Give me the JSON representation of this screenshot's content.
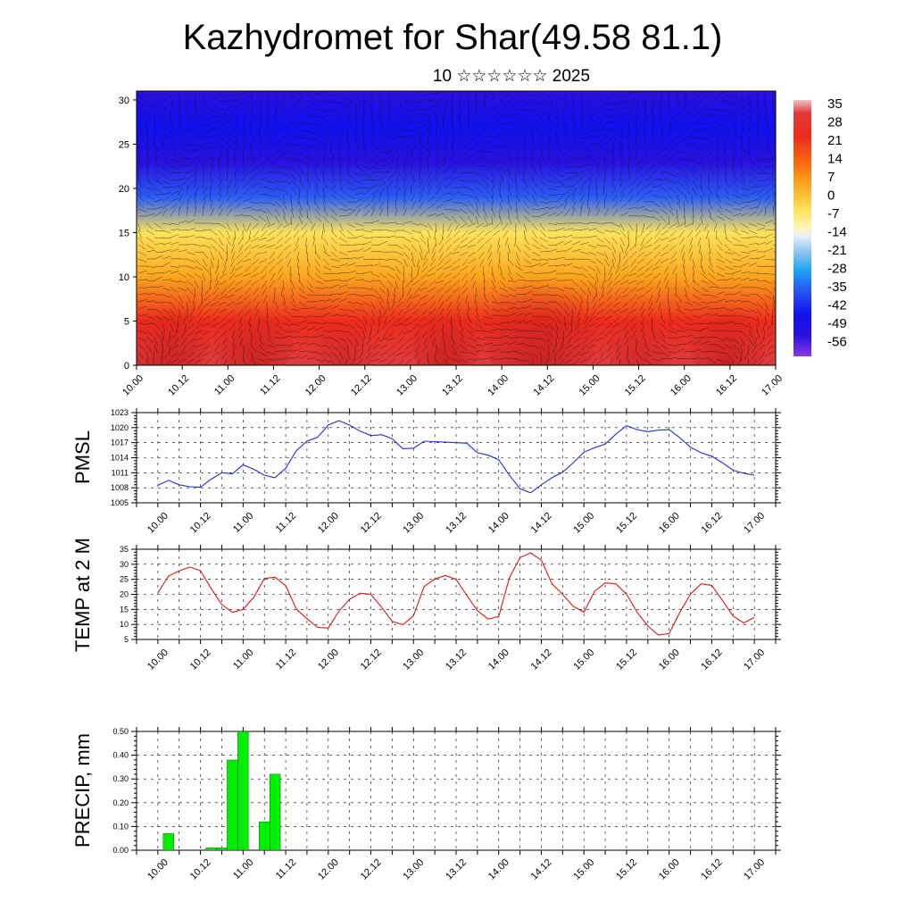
{
  "header": {
    "title": "Kazhydromet for Shar(49.58 81.1)",
    "date_line": "10 ☆☆☆☆☆☆ 2025"
  },
  "chart_data": [
    {
      "id": "temp-cross-section",
      "type": "heatmap",
      "title": "",
      "xlabel": "",
      "ylabel": "",
      "x_tick_labels": [
        "10.00",
        "10.12",
        "11.00",
        "11.12",
        "12.00",
        "12.12",
        "13.00",
        "13.12",
        "14.00",
        "14.12",
        "15.00",
        "15.12",
        "16.00",
        "16.12",
        "17.00"
      ],
      "y_ticks": [
        0,
        5,
        10,
        15,
        20,
        25,
        30
      ],
      "ylim": [
        0,
        31
      ],
      "layers": [
        {
          "height_km": 0.5,
          "temp_c": 28
        },
        {
          "height_km": 5,
          "temp_c": 18
        },
        {
          "height_km": 10,
          "temp_c": 5
        },
        {
          "height_km": 15,
          "temp_c": -10
        },
        {
          "height_km": 19,
          "temp_c": -35
        },
        {
          "height_km": 23,
          "temp_c": -58
        },
        {
          "height_km": 27,
          "temp_c": -52
        },
        {
          "height_km": 31,
          "temp_c": -56
        }
      ],
      "wind_barbs": true,
      "colorbar": {
        "labels": [
          "35",
          "28",
          "21",
          "14",
          "7",
          "0",
          "-7",
          "-14",
          "-21",
          "-28",
          "-35",
          "-42",
          "-49",
          "-56"
        ],
        "range": [
          -60,
          38
        ],
        "placement": "right"
      }
    },
    {
      "id": "pmsl",
      "type": "line",
      "ylabel": "PMSL",
      "color": "#1f2ee0",
      "y_tick_labels": [
        "1005",
        "1008",
        "1011",
        "1014",
        "1017",
        "1020",
        "1023"
      ],
      "ylim": [
        1005,
        1023
      ],
      "x_tick_labels": [
        "10.00",
        "10.12",
        "11.00",
        "11.12",
        "12.00",
        "12.12",
        "13.00",
        "13.12",
        "14.00",
        "14.12",
        "15.00",
        "15.12",
        "16.00",
        "16.12",
        "17.00"
      ],
      "xlim": [
        -0.25,
        7.25
      ],
      "x": [
        0,
        0.125,
        0.25,
        0.375,
        0.5,
        0.625,
        0.75,
        0.875,
        1,
        1.125,
        1.25,
        1.375,
        1.5,
        1.625,
        1.75,
        1.875,
        2,
        2.125,
        2.25,
        2.375,
        2.5,
        2.625,
        2.75,
        2.875,
        3,
        3.125,
        3.25,
        3.375,
        3.5,
        3.625,
        3.75,
        3.875,
        4,
        4.125,
        4.25,
        4.375,
        4.5,
        4.625,
        4.75,
        4.875,
        5,
        5.125,
        5.25,
        5.375,
        5.5,
        5.625,
        5.75,
        5.875,
        6,
        6.125,
        6.25,
        6.375,
        6.5,
        6.625,
        6.75,
        6.875,
        7
      ],
      "values": [
        1008.5,
        1009.5,
        1008.6,
        1008.2,
        1008.1,
        1009.7,
        1011.0,
        1010.8,
        1012.6,
        1011.7,
        1010.5,
        1010.0,
        1011.9,
        1015.4,
        1017.3,
        1018.1,
        1020.5,
        1021.4,
        1020.5,
        1019.3,
        1018.4,
        1018.6,
        1017.8,
        1015.8,
        1015.9,
        1017.3,
        1017.2,
        1017.1,
        1017.0,
        1016.9,
        1015.0,
        1014.5,
        1013.6,
        1010.5,
        1007.8,
        1007.0,
        1008.6,
        1010.0,
        1011.1,
        1013.0,
        1015.1,
        1016.0,
        1016.7,
        1018.7,
        1020.4,
        1019.6,
        1019.2,
        1019.5,
        1019.6,
        1018.0,
        1016.1,
        1015.0,
        1014.3,
        1013.0,
        1011.5,
        1010.9,
        1010.5
      ],
      "grid": true
    },
    {
      "id": "temp-2m",
      "type": "line",
      "ylabel": "TEMP at 2 M",
      "color": "#e01515",
      "y_tick_labels": [
        "5",
        "10",
        "15",
        "20",
        "25",
        "30",
        "35"
      ],
      "ylim": [
        5,
        35
      ],
      "x_tick_labels": [
        "10.00",
        "10.12",
        "11.00",
        "11.12",
        "12.00",
        "12.12",
        "13.00",
        "13.12",
        "14.00",
        "14.12",
        "15.00",
        "15.12",
        "16.00",
        "16.12",
        "17.00"
      ],
      "xlim": [
        -0.25,
        7.25
      ],
      "x": [
        0,
        0.125,
        0.25,
        0.375,
        0.5,
        0.625,
        0.75,
        0.875,
        1,
        1.125,
        1.25,
        1.375,
        1.5,
        1.625,
        1.75,
        1.875,
        2,
        2.125,
        2.25,
        2.375,
        2.5,
        2.625,
        2.75,
        2.875,
        3,
        3.125,
        3.25,
        3.375,
        3.5,
        3.625,
        3.75,
        3.875,
        4,
        4.125,
        4.25,
        4.375,
        4.5,
        4.625,
        4.75,
        4.875,
        5,
        5.125,
        5.25,
        5.375,
        5.5,
        5.625,
        5.75,
        5.875,
        6,
        6.125,
        6.25,
        6.375,
        6.5,
        6.625,
        6.75,
        6.875,
        7
      ],
      "values": [
        20.5,
        26.1,
        27.8,
        29.1,
        27.9,
        22.0,
        16.6,
        14.0,
        15.0,
        19.0,
        25.3,
        25.7,
        22.9,
        15.1,
        11.9,
        9.0,
        8.8,
        14.4,
        18.4,
        20.4,
        20.0,
        15.7,
        11.0,
        9.9,
        12.9,
        22.6,
        25.1,
        26.3,
        25.0,
        19.7,
        14.6,
        11.8,
        12.6,
        25.5,
        32.2,
        33.8,
        31.4,
        23.5,
        20.0,
        16.0,
        14.1,
        21.0,
        23.8,
        23.5,
        20.1,
        14.0,
        9.5,
        6.5,
        7.0,
        14.0,
        20.0,
        23.5,
        23.0,
        18.0,
        12.8,
        10.5,
        12.3
      ],
      "grid": true
    },
    {
      "id": "precip",
      "type": "bar",
      "ylabel": "PRECIP, mm",
      "color": "#00ee00",
      "y_tick_labels": [
        "0.00",
        "0.10",
        "0.20",
        "0.30",
        "0.40",
        "0.50"
      ],
      "ylim": [
        0,
        0.5
      ],
      "x_tick_labels": [
        "10.00",
        "10.12",
        "11.00",
        "11.12",
        "12.00",
        "12.12",
        "13.00",
        "13.12",
        "14.00",
        "14.12",
        "15.00",
        "15.12",
        "16.00",
        "16.12",
        "17.00"
      ],
      "xlim": [
        -0.25,
        7.25
      ],
      "x": [
        0.125,
        0.625,
        0.75,
        0.875,
        1,
        1.25,
        1.375
      ],
      "values": [
        0.07,
        0.01,
        0.01,
        0.38,
        0.5,
        0.12,
        0.32
      ],
      "grid": true
    }
  ]
}
